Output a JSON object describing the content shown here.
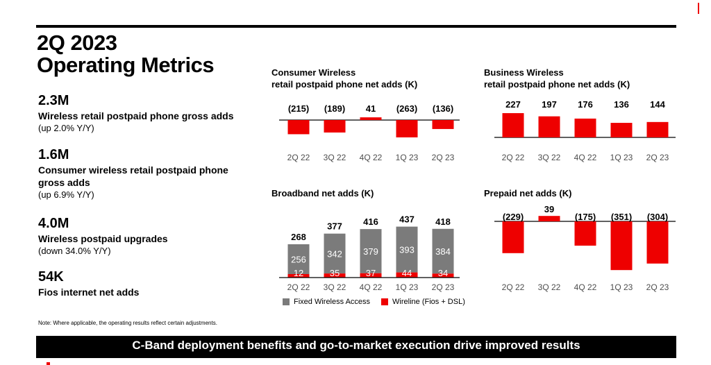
{
  "page": {
    "title_line1": "2Q 2023",
    "title_line2": "Operating Metrics",
    "note": "Note:  Where applicable, the operating results reflect certain adjustments.",
    "banner": "C-Band deployment benefits and go-to-market execution drive improved results"
  },
  "metrics": [
    {
      "value": "2.3M",
      "label": "Wireless retail postpaid phone gross adds",
      "sub": "(up 2.0% Y/Y)"
    },
    {
      "value": "1.6M",
      "label": "Consumer wireless retail postpaid phone gross adds",
      "sub": "(up 6.9% Y/Y)"
    },
    {
      "value": "4.0M",
      "label": "Wireless postpaid upgrades",
      "sub": "(down 34.0% Y/Y)"
    },
    {
      "value": "54K",
      "label": "Fios internet net adds",
      "sub": ""
    }
  ],
  "colors": {
    "red": "#ee0000",
    "gray": "#7b7b7b",
    "axis": "#000000",
    "tick": "#4d4d4d"
  },
  "chart_data": [
    {
      "type": "bar",
      "title_line1": "Consumer Wireless",
      "title_line2": "retail postpaid phone net adds (K)",
      "categories": [
        "2Q 22",
        "3Q 22",
        "4Q 22",
        "1Q 23",
        "2Q 23"
      ],
      "values": [
        -215,
        -189,
        41,
        -263,
        -136
      ],
      "labels": [
        "(215)",
        "(189)",
        "41",
        "(263)",
        "(136)"
      ]
    },
    {
      "type": "bar",
      "title_line1": "Business Wireless",
      "title_line2": "retail postpaid phone net adds (K)",
      "categories": [
        "2Q 22",
        "3Q 22",
        "4Q 22",
        "1Q 23",
        "2Q 23"
      ],
      "values": [
        227,
        197,
        176,
        136,
        144
      ],
      "labels": [
        "227",
        "197",
        "176",
        "136",
        "144"
      ]
    },
    {
      "type": "bar",
      "stacked": true,
      "title_line1": "Broadband net adds (K)",
      "categories": [
        "2Q 22",
        "3Q 22",
        "4Q 22",
        "1Q 23",
        "2Q 23"
      ],
      "totals": [
        268,
        377,
        416,
        437,
        418
      ],
      "series": [
        {
          "name": "Fixed Wireless Access",
          "values": [
            256,
            342,
            379,
            393,
            384
          ]
        },
        {
          "name": "Wireline (Fios + DSL)",
          "values": [
            12,
            35,
            37,
            44,
            34
          ]
        }
      ],
      "legend": [
        "Fixed Wireless Access",
        "Wireline (Fios + DSL)"
      ]
    },
    {
      "type": "bar",
      "title_line1": "Prepaid net adds (K)",
      "categories": [
        "2Q 22",
        "3Q 22",
        "4Q 22",
        "1Q 23",
        "2Q 23"
      ],
      "values": [
        -229,
        39,
        -175,
        -351,
        -304
      ],
      "labels": [
        "(229)",
        "39",
        "(175)",
        "(351)",
        "(304)"
      ]
    }
  ]
}
